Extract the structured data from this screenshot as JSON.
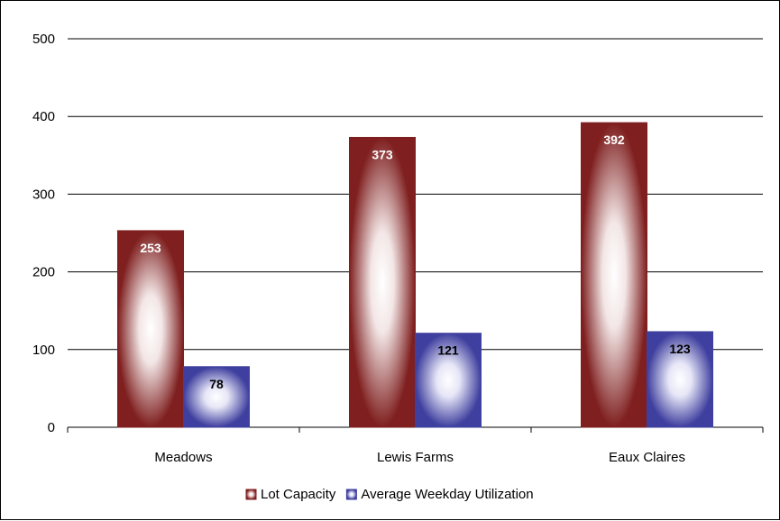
{
  "chart_data": {
    "type": "bar",
    "categories": [
      "Meadows",
      "Lewis Farms",
      "Eaux Claires"
    ],
    "series": [
      {
        "name": "Lot Capacity",
        "values": [
          253,
          373,
          392
        ],
        "color": "#7f1f1f",
        "label_color": "#ffffff"
      },
      {
        "name": "Average Weekday Utilization",
        "values": [
          78,
          121,
          123
        ],
        "color": "#3f3f9f",
        "label_color": "#000000"
      }
    ],
    "y_ticks": [
      "0",
      "100",
      "200",
      "300",
      "400",
      "500"
    ],
    "ylim": [
      0,
      500
    ],
    "grid": true,
    "legend_position": "bottom"
  }
}
